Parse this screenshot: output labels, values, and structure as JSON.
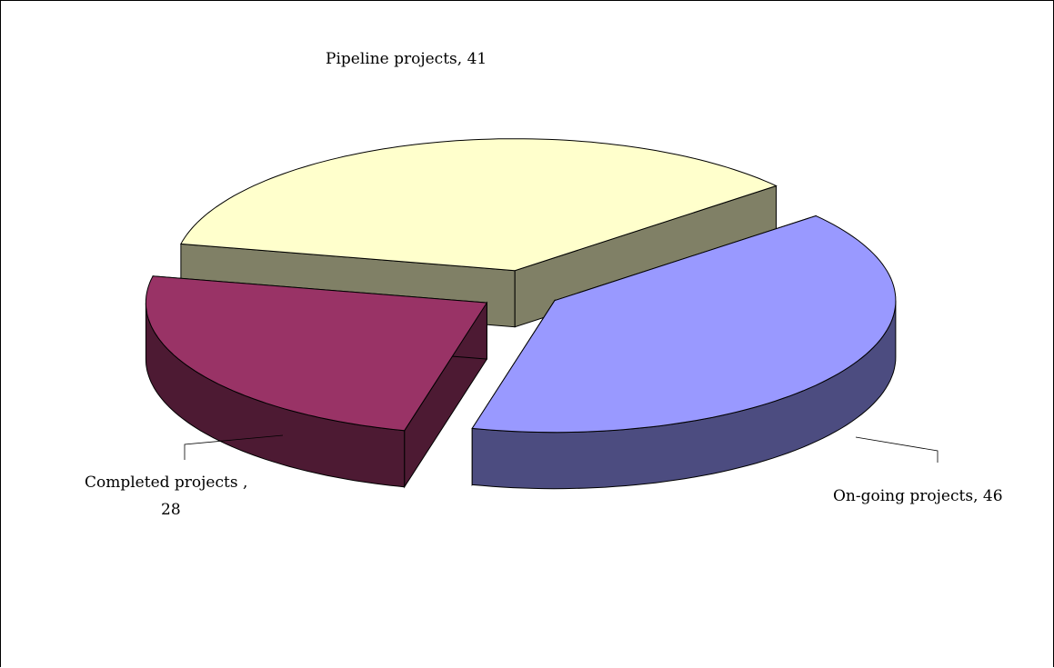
{
  "chart_data": {
    "type": "pie",
    "style": "3d-exploded",
    "title": "",
    "slices": [
      {
        "label": "On-going projects",
        "value": 46,
        "color": "#9999ff",
        "side_color": "#4c4c80"
      },
      {
        "label": "Completed projects",
        "value": 28,
        "color": "#993366",
        "side_color": "#4d1a33"
      },
      {
        "label": "Pipeline projects",
        "value": 41,
        "color": "#ffffcc",
        "side_color": "#808066"
      }
    ],
    "data_labels": [
      {
        "text": "On-going projects, 46"
      },
      {
        "text_line1": "Completed projects ,",
        "text_line2": "28"
      },
      {
        "text": "Pipeline projects, 41"
      }
    ],
    "legend": "none"
  }
}
